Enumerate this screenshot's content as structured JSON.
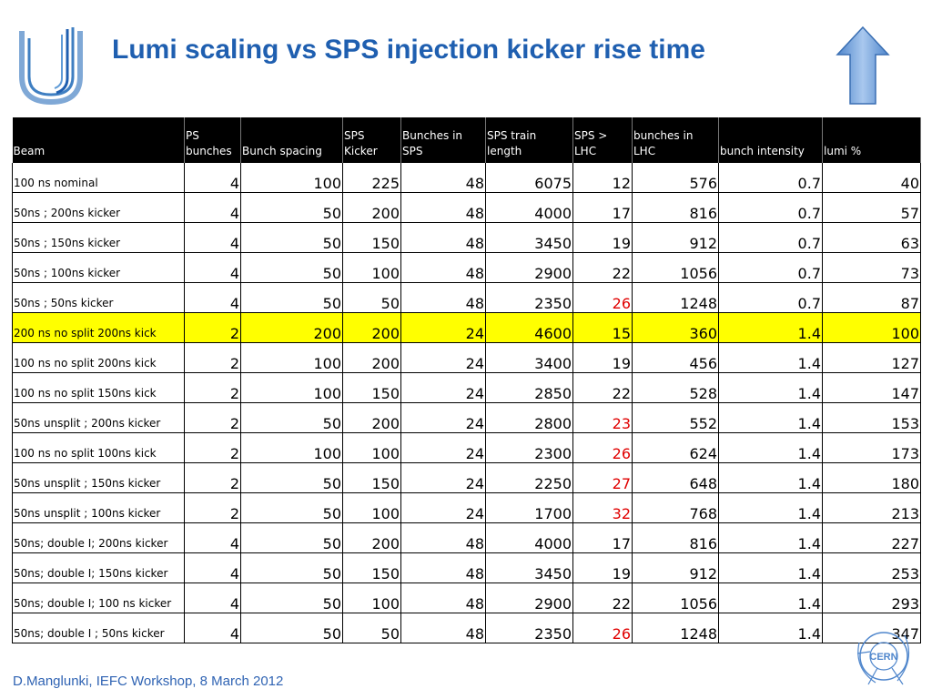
{
  "title": "Lumi scaling vs SPS injection kicker rise time",
  "footer": "D.Manglunki, IEFC Workshop, 8 March 2012",
  "logo_text": "CERN",
  "icons": {
    "up_arrow": "up-arrow-icon",
    "logo_u": "u-logo-icon",
    "cern": "cern-logo-icon"
  },
  "colors": {
    "title": "#1f5fb0",
    "header_bg": "#000000",
    "highlight": "#ffff00",
    "alert_red": "#e00000",
    "footer": "#2f63b3"
  },
  "table": {
    "headers": [
      "Beam",
      "PS bunches",
      "Bunch spacing",
      "SPS Kicker",
      "Bunches in SPS",
      "SPS train length",
      "SPS > LHC",
      "bunches in LHC",
      "bunch intensity",
      "lumi  %"
    ],
    "highlight_row": 5,
    "red_column": 6,
    "red_rows": [
      4,
      8,
      9,
      10,
      11,
      15
    ],
    "rows": [
      [
        "100 ns nominal",
        "4",
        "100",
        "225",
        "48",
        "6075",
        "12",
        "576",
        "0.7",
        "40"
      ],
      [
        "50ns ; 200ns kicker",
        "4",
        "50",
        "200",
        "48",
        "4000",
        "17",
        "816",
        "0.7",
        "57"
      ],
      [
        "50ns ; 150ns kicker",
        "4",
        "50",
        "150",
        "48",
        "3450",
        "19",
        "912",
        "0.7",
        "63"
      ],
      [
        "50ns ; 100ns kicker",
        "4",
        "50",
        "100",
        "48",
        "2900",
        "22",
        "1056",
        "0.7",
        "73"
      ],
      [
        "50ns ; 50ns kicker",
        "4",
        "50",
        "50",
        "48",
        "2350",
        "26",
        "1248",
        "0.7",
        "87"
      ],
      [
        "200 ns no split 200ns kick",
        "2",
        "200",
        "200",
        "24",
        "4600",
        "15",
        "360",
        "1.4",
        "100"
      ],
      [
        "100 ns no split 200ns kick",
        "2",
        "100",
        "200",
        "24",
        "3400",
        "19",
        "456",
        "1.4",
        "127"
      ],
      [
        "100 ns no split 150ns kick",
        "2",
        "100",
        "150",
        "24",
        "2850",
        "22",
        "528",
        "1.4",
        "147"
      ],
      [
        "50ns unsplit ; 200ns kicker",
        "2",
        "50",
        "200",
        "24",
        "2800",
        "23",
        "552",
        "1.4",
        "153"
      ],
      [
        "100 ns no split 100ns kick",
        "2",
        "100",
        "100",
        "24",
        "2300",
        "26",
        "624",
        "1.4",
        "173"
      ],
      [
        "50ns unsplit ; 150ns kicker",
        "2",
        "50",
        "150",
        "24",
        "2250",
        "27",
        "648",
        "1.4",
        "180"
      ],
      [
        "50ns unsplit ; 100ns kicker",
        "2",
        "50",
        "100",
        "24",
        "1700",
        "32",
        "768",
        "1.4",
        "213"
      ],
      [
        "50ns; double I; 200ns kicker",
        "4",
        "50",
        "200",
        "48",
        "4000",
        "17",
        "816",
        "1.4",
        "227"
      ],
      [
        "50ns; double I; 150ns kicker",
        "4",
        "50",
        "150",
        "48",
        "3450",
        "19",
        "912",
        "1.4",
        "253"
      ],
      [
        "50ns; double I; 100 ns kicker",
        "4",
        "50",
        "100",
        "48",
        "2900",
        "22",
        "1056",
        "1.4",
        "293"
      ],
      [
        "50ns; double I ; 50ns kicker",
        "4",
        "50",
        "50",
        "48",
        "2350",
        "26",
        "1248",
        "1.4",
        "347"
      ]
    ]
  }
}
